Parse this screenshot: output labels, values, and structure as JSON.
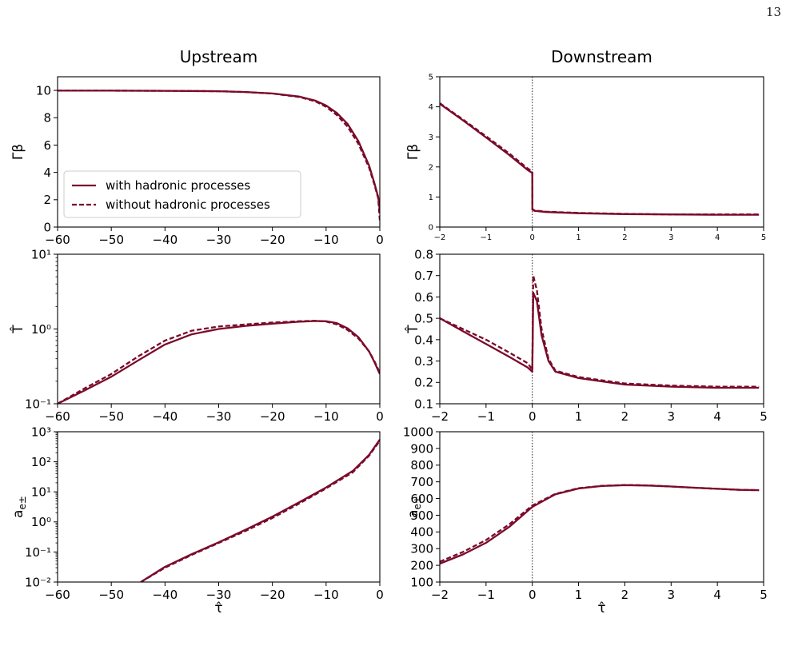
{
  "page_number": "13",
  "colors": {
    "line": "#7a0a2a",
    "axis": "#000000",
    "vline": "#333333"
  },
  "chart_data": [
    {
      "id": "upstream-gamma-beta",
      "type": "line",
      "title": "Upstream",
      "ylabel": "Γβ",
      "xlabel": "",
      "xlim": [
        -60,
        0
      ],
      "ylim": [
        0,
        11
      ],
      "yscale": "linear",
      "xticks": [
        -60,
        -50,
        -40,
        -30,
        -20,
        -10,
        0
      ],
      "xticklabels": [
        "−60",
        "−50",
        "−40",
        "−30",
        "−20",
        "−10",
        "0"
      ],
      "yticks": [
        0,
        2,
        4,
        6,
        8,
        10
      ],
      "yticklabels": [
        "0",
        "2",
        "4",
        "6",
        "8",
        "10"
      ],
      "vline": null,
      "legend": {
        "location": "lower-left",
        "entries": [
          "with hadronic processes",
          "without hadronic processes"
        ]
      },
      "series": [
        {
          "name": "with hadronic processes",
          "style": "solid",
          "x": [
            -60,
            -50,
            -40,
            -30,
            -25,
            -20,
            -15,
            -12,
            -10,
            -8,
            -6,
            -4,
            -2,
            -1,
            -0.3,
            0
          ],
          "y": [
            9.98,
            9.98,
            9.97,
            9.94,
            9.88,
            9.78,
            9.55,
            9.25,
            8.9,
            8.35,
            7.55,
            6.3,
            4.5,
            3.2,
            2.2,
            1.2
          ]
        },
        {
          "name": "without hadronic processes",
          "style": "dashed",
          "x": [
            -60,
            -50,
            -40,
            -30,
            -25,
            -20,
            -15,
            -12,
            -10,
            -8,
            -6,
            -4,
            -2,
            -1,
            -0.3,
            0
          ],
          "y": [
            9.98,
            9.98,
            9.97,
            9.94,
            9.88,
            9.77,
            9.52,
            9.2,
            8.8,
            8.2,
            7.35,
            6.1,
            4.35,
            3.1,
            2.1,
            0.5
          ]
        }
      ]
    },
    {
      "id": "downstream-gamma-beta",
      "type": "line",
      "title": "Downstream",
      "ylabel": "Γβ",
      "xlabel": "",
      "xlim": [
        -2,
        5
      ],
      "ylim": [
        0,
        5
      ],
      "yscale": "linear",
      "xticks": [
        -2,
        -1,
        0,
        1,
        2,
        3,
        4,
        5
      ],
      "xticklabels": [
        "−2",
        "−1",
        "0",
        "1",
        "2",
        "3",
        "4",
        "5"
      ],
      "yticks": [
        0,
        1,
        2,
        3,
        4,
        5
      ],
      "yticklabels": [
        "0",
        "1",
        "2",
        "3",
        "4",
        "5"
      ],
      "vline": 0,
      "legend": null,
      "series": [
        {
          "name": "with hadronic processes",
          "style": "solid",
          "x": [
            -2,
            -1.5,
            -1,
            -0.5,
            -0.1,
            0,
            0.001,
            0.05,
            0.3,
            1,
            2,
            3,
            4,
            4.9
          ],
          "y": [
            4.1,
            3.55,
            2.98,
            2.4,
            1.9,
            1.8,
            0.58,
            0.54,
            0.5,
            0.46,
            0.43,
            0.42,
            0.41,
            0.41
          ]
        },
        {
          "name": "without hadronic processes",
          "style": "dashed",
          "x": [
            -2,
            -1.5,
            -1,
            -0.5,
            -0.1,
            0,
            0.001,
            0.05,
            0.3,
            1,
            2,
            3,
            4,
            4.9
          ],
          "y": [
            4.12,
            3.58,
            3.02,
            2.45,
            1.95,
            1.85,
            0.6,
            0.55,
            0.51,
            0.47,
            0.44,
            0.42,
            0.42,
            0.42
          ]
        }
      ]
    },
    {
      "id": "upstream-temperature",
      "type": "line",
      "title": "",
      "ylabel": "T̂",
      "xlabel": "",
      "xlim": [
        -60,
        0
      ],
      "ylim": [
        0.1,
        10
      ],
      "yscale": "log",
      "xticks": [
        -60,
        -50,
        -40,
        -30,
        -20,
        -10,
        0
      ],
      "xticklabels": [
        "−60",
        "−50",
        "−40",
        "−30",
        "−20",
        "−10",
        "0"
      ],
      "yticks": [
        0.1,
        1,
        10
      ],
      "yticklabels": [
        "10⁻¹",
        "10⁰",
        "10¹"
      ],
      "vline": null,
      "legend": null,
      "series": [
        {
          "name": "with hadronic processes",
          "style": "solid",
          "x": [
            -60,
            -55,
            -50,
            -45,
            -40,
            -35,
            -30,
            -25,
            -20,
            -15,
            -12,
            -10,
            -8,
            -6,
            -4,
            -2,
            -1,
            0
          ],
          "y": [
            0.1,
            0.15,
            0.23,
            0.38,
            0.62,
            0.85,
            1.0,
            1.1,
            1.18,
            1.25,
            1.28,
            1.27,
            1.2,
            1.02,
            0.78,
            0.5,
            0.36,
            0.25
          ]
        },
        {
          "name": "without hadronic processes",
          "style": "dashed",
          "x": [
            -60,
            -55,
            -50,
            -45,
            -40,
            -35,
            -30,
            -25,
            -20,
            -15,
            -12,
            -10,
            -8,
            -6,
            -4,
            -2,
            -1,
            0
          ],
          "y": [
            0.1,
            0.16,
            0.25,
            0.43,
            0.7,
            0.95,
            1.08,
            1.15,
            1.22,
            1.27,
            1.29,
            1.26,
            1.15,
            0.97,
            0.75,
            0.5,
            0.37,
            0.26
          ]
        }
      ]
    },
    {
      "id": "downstream-temperature",
      "type": "line",
      "title": "",
      "ylabel": "T̂",
      "xlabel": "",
      "xlim": [
        -2,
        5
      ],
      "ylim": [
        0.1,
        0.8
      ],
      "yscale": "linear",
      "xticks": [
        -2,
        -1,
        0,
        1,
        2,
        3,
        4,
        5
      ],
      "xticklabels": [
        "−2",
        "−1",
        "0",
        "1",
        "2",
        "3",
        "4",
        "5"
      ],
      "yticks": [
        0.1,
        0.2,
        0.3,
        0.4,
        0.5,
        0.6,
        0.7,
        0.8
      ],
      "yticklabels": [
        "0.1",
        "0.2",
        "0.3",
        "0.4",
        "0.5",
        "0.6",
        "0.7",
        "0.8"
      ],
      "vline": 0,
      "legend": null,
      "series": [
        {
          "name": "with hadronic processes",
          "style": "solid",
          "x": [
            -2,
            -1.5,
            -1,
            -0.5,
            -0.1,
            0,
            0.02,
            0.1,
            0.2,
            0.35,
            0.5,
            1,
            2,
            3,
            4,
            4.9
          ],
          "y": [
            0.5,
            0.44,
            0.38,
            0.32,
            0.27,
            0.25,
            0.62,
            0.58,
            0.42,
            0.3,
            0.25,
            0.22,
            0.19,
            0.18,
            0.175,
            0.175
          ]
        },
        {
          "name": "without hadronic processes",
          "style": "dashed",
          "x": [
            -2,
            -1.5,
            -1,
            -0.5,
            -0.1,
            0,
            0.02,
            0.1,
            0.2,
            0.35,
            0.5,
            1,
            2,
            3,
            4,
            4.9
          ],
          "y": [
            0.5,
            0.45,
            0.4,
            0.34,
            0.29,
            0.26,
            0.7,
            0.63,
            0.45,
            0.31,
            0.255,
            0.225,
            0.195,
            0.185,
            0.18,
            0.18
          ]
        }
      ]
    },
    {
      "id": "upstream-pair-multiplicity",
      "type": "line",
      "title": "",
      "ylabel": "a_{e±}",
      "xlabel": "τ̂",
      "xlim": [
        -60,
        0
      ],
      "ylim": [
        0.01,
        1000
      ],
      "yscale": "log",
      "xticks": [
        -60,
        -50,
        -40,
        -30,
        -20,
        -10,
        0
      ],
      "xticklabels": [
        "−60",
        "−50",
        "−40",
        "−30",
        "−20",
        "−10",
        "0"
      ],
      "yticks": [
        0.01,
        0.1,
        1,
        10,
        100,
        1000
      ],
      "yticklabels": [
        "10⁻²",
        "10⁻¹",
        "10⁰",
        "10¹",
        "10²",
        "10³"
      ],
      "vline": null,
      "legend": null,
      "series": [
        {
          "name": "with hadronic processes",
          "style": "solid",
          "x": [
            -44.5,
            -40,
            -35,
            -30,
            -25,
            -20,
            -15,
            -10,
            -5,
            -2,
            0
          ],
          "y": [
            0.01,
            0.032,
            0.085,
            0.21,
            0.55,
            1.5,
            4.5,
            14,
            50,
            170,
            550
          ]
        },
        {
          "name": "without hadronic processes",
          "style": "dashed",
          "x": [
            -44.5,
            -40,
            -35,
            -30,
            -25,
            -20,
            -15,
            -10,
            -5,
            -2,
            0
          ],
          "y": [
            0.01,
            0.03,
            0.08,
            0.2,
            0.5,
            1.35,
            4.1,
            13,
            45,
            160,
            500
          ]
        }
      ]
    },
    {
      "id": "downstream-pair-multiplicity",
      "type": "line",
      "title": "",
      "ylabel": "a_{e±}",
      "xlabel": "τ̂",
      "xlim": [
        -2,
        5
      ],
      "ylim": [
        100,
        1000
      ],
      "yscale": "linear",
      "xticks": [
        -2,
        -1,
        0,
        1,
        2,
        3,
        4,
        5
      ],
      "xticklabels": [
        "−2",
        "−1",
        "0",
        "1",
        "2",
        "3",
        "4",
        "5"
      ],
      "yticks": [
        100,
        200,
        300,
        400,
        500,
        600,
        700,
        800,
        900,
        1000
      ],
      "yticklabels": [
        "100",
        "200",
        "300",
        "400",
        "500",
        "600",
        "700",
        "800",
        "900",
        "1000"
      ],
      "vline": 0,
      "legend": null,
      "series": [
        {
          "name": "with hadronic processes",
          "style": "solid",
          "x": [
            -2,
            -1.5,
            -1,
            -0.5,
            0,
            0.5,
            1,
            1.5,
            2,
            2.5,
            3,
            3.5,
            4,
            4.5,
            4.9
          ],
          "y": [
            210,
            265,
            335,
            430,
            550,
            625,
            660,
            675,
            680,
            678,
            672,
            665,
            658,
            652,
            650
          ]
        },
        {
          "name": "without hadronic processes",
          "style": "dashed",
          "x": [
            -2,
            -1.5,
            -1,
            -0.5,
            0,
            0.5,
            1,
            1.5,
            2,
            2.5,
            3,
            3.5,
            4,
            4.5,
            4.9
          ],
          "y": [
            222,
            280,
            352,
            445,
            558,
            628,
            662,
            676,
            681,
            679,
            672,
            665,
            658,
            652,
            650
          ]
        }
      ]
    }
  ]
}
